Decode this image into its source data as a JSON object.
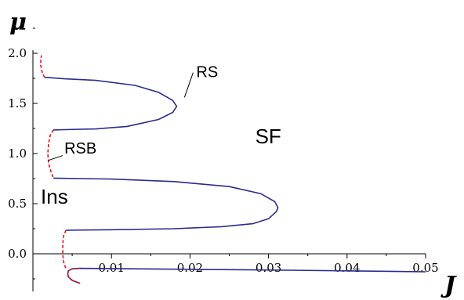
{
  "chart_data": {
    "type": "line",
    "xlabel": "J",
    "ylabel": "μ",
    "xlim": [
      0,
      0.05
    ],
    "ylim": [
      -0.3,
      2.0
    ],
    "x_ticks": [
      {
        "value": 0.01,
        "label": "0.01"
      },
      {
        "value": 0.02,
        "label": "0.02"
      },
      {
        "value": 0.03,
        "label": "0.03"
      },
      {
        "value": 0.04,
        "label": "0.04"
      },
      {
        "value": 0.05,
        "label": "0.05"
      }
    ],
    "y_ticks": [
      {
        "value": 0.0,
        "label": "0.0"
      },
      {
        "value": 0.5,
        "label": "0.5"
      },
      {
        "value": 1.0,
        "label": "1.0"
      },
      {
        "value": 1.5,
        "label": "1.5"
      },
      {
        "value": 2.0,
        "label": "2.0"
      }
    ],
    "series": [
      {
        "key": "rs",
        "color": "#2b2b8f",
        "style": "solid",
        "points": [
          [
            0.006,
            -0.295
          ],
          [
            0.005,
            -0.265
          ],
          [
            0.0045,
            -0.23
          ],
          [
            0.00445,
            -0.2
          ],
          [
            0.0045,
            -0.17
          ],
          [
            0.005,
            -0.15
          ],
          [
            0.006,
            -0.145
          ],
          [
            0.01,
            -0.148
          ],
          [
            0.02,
            -0.155
          ],
          [
            0.03,
            -0.162
          ],
          [
            0.04,
            -0.17
          ],
          [
            0.05,
            -0.18
          ],
          [
            0.0042,
            0.235
          ],
          [
            0.005,
            0.236
          ],
          [
            0.01,
            0.24
          ],
          [
            0.018,
            0.25
          ],
          [
            0.024,
            0.27
          ],
          [
            0.028,
            0.3
          ],
          [
            0.03,
            0.35
          ],
          [
            0.031,
            0.42
          ],
          [
            0.0312,
            0.46
          ],
          [
            0.0308,
            0.52
          ],
          [
            0.029,
            0.6
          ],
          [
            0.025,
            0.67
          ],
          [
            0.018,
            0.72
          ],
          [
            0.01,
            0.745
          ],
          [
            0.004,
            0.752
          ],
          [
            0.0026,
            0.755
          ],
          [
            0.0026,
            1.235
          ],
          [
            0.004,
            1.238
          ],
          [
            0.008,
            1.245
          ],
          [
            0.012,
            1.27
          ],
          [
            0.016,
            1.34
          ],
          [
            0.0178,
            1.41
          ],
          [
            0.0183,
            1.47
          ],
          [
            0.0178,
            1.53
          ],
          [
            0.016,
            1.61
          ],
          [
            0.013,
            1.68
          ],
          [
            0.008,
            1.73
          ],
          [
            0.004,
            1.745
          ],
          [
            0.0015,
            1.76
          ]
        ]
      },
      {
        "key": "rsb",
        "color": "#e0141e",
        "style": "dashed",
        "segments": [
          [
            [
              0.006,
              -0.295
            ],
            [
              0.005,
              -0.265
            ],
            [
              0.0045,
              -0.23
            ],
            [
              0.00445,
              -0.2
            ],
            [
              0.0045,
              -0.17
            ],
            [
              0.005,
              -0.15
            ],
            [
              0.006,
              -0.145
            ]
          ],
          [
            [
              0.0042,
              0.235
            ],
            [
              0.0039,
              0.18
            ],
            [
              0.0038,
              0.1
            ],
            [
              0.0038,
              0.0
            ],
            [
              0.0039,
              -0.08
            ],
            [
              0.0042,
              -0.15
            ]
          ],
          [
            [
              0.0026,
              1.235
            ],
            [
              0.0022,
              1.18
            ],
            [
              0.002,
              1.1
            ],
            [
              0.0019,
              1.0
            ],
            [
              0.002,
              0.9
            ],
            [
              0.0023,
              0.82
            ],
            [
              0.0026,
              0.755
            ]
          ],
          [
            [
              0.0015,
              1.76
            ],
            [
              0.0012,
              1.8
            ],
            [
              0.001,
              1.88
            ],
            [
              0.001,
              1.94
            ],
            [
              0.0011,
              1.98
            ]
          ]
        ]
      }
    ],
    "annotations": [
      {
        "text": "RS",
        "x": 0.0208,
        "y": 1.76
      },
      {
        "text": "RSB",
        "x": 0.004,
        "y": 1.0
      },
      {
        "text": "SF",
        "x": 0.0283,
        "y": 1.1
      },
      {
        "text": "Ins",
        "x": 0.001,
        "y": 0.5
      }
    ],
    "grid": false,
    "legend": "none"
  }
}
